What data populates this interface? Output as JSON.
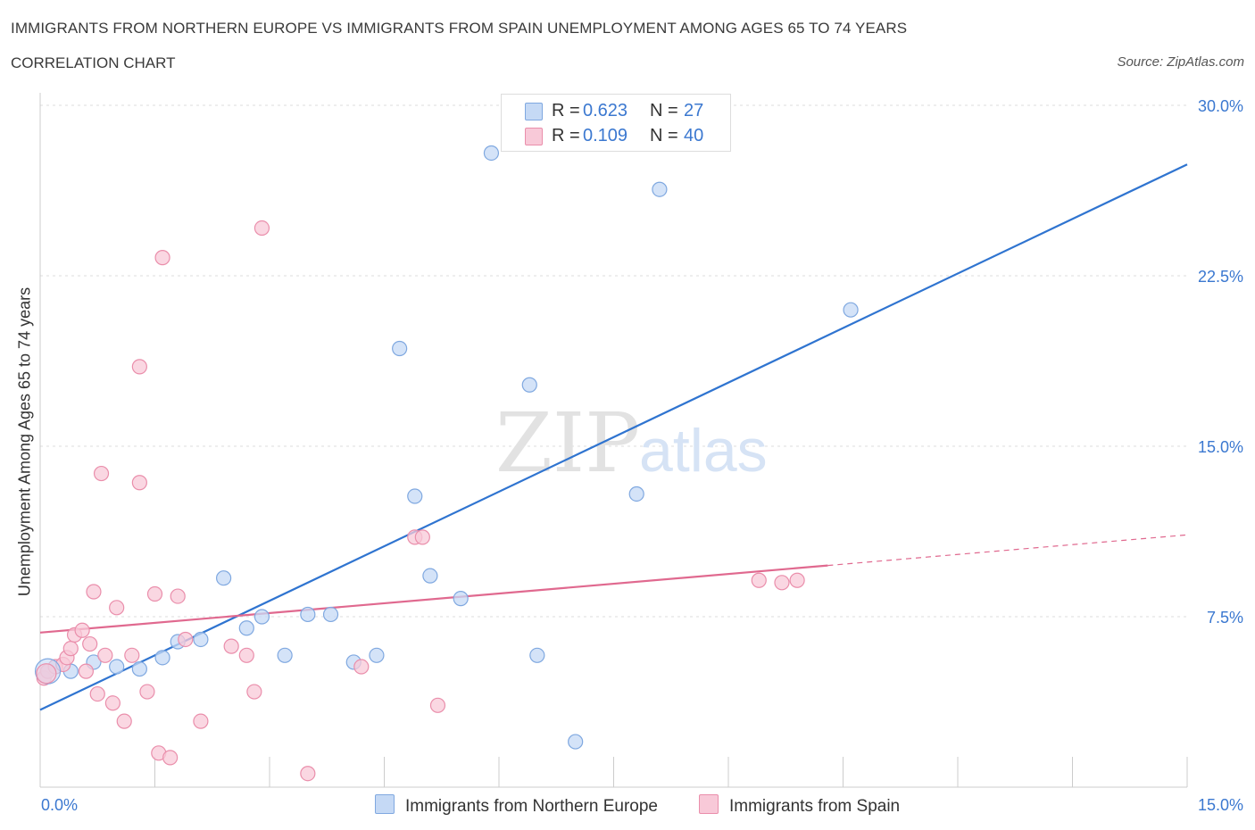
{
  "header": {
    "title": "IMMIGRANTS FROM NORTHERN EUROPE VS IMMIGRANTS FROM SPAIN UNEMPLOYMENT AMONG AGES 65 TO 74 YEARS",
    "subtitle": "CORRELATION CHART",
    "source": "Source: ZipAtlas.com"
  },
  "legend": {
    "series1": {
      "r_label": "R =",
      "r_value": "0.623",
      "n_label": "N =",
      "n_value": "27"
    },
    "series2": {
      "r_label": "R =",
      "r_value": "0.109",
      "n_label": "N =",
      "n_value": "40"
    }
  },
  "watermark": {
    "zip": "ZIP",
    "atlas": "atlas"
  },
  "colors": {
    "blue_fill": "#c5d9f5",
    "blue_stroke": "#7fa8e0",
    "blue_line": "#2f74d0",
    "pink_fill": "#f8c9d8",
    "pink_stroke": "#ea8eab",
    "pink_line": "#e0698f",
    "tick_label": "#3b78d0"
  },
  "chart_data": {
    "type": "scatter",
    "title": "IMMIGRANTS FROM NORTHERN EUROPE VS IMMIGRANTS FROM SPAIN UNEMPLOYMENT AMONG AGES 65 TO 74 YEARS",
    "xlabel": "",
    "ylabel": "Unemployment Among Ages 65 to 74 years",
    "xlim": [
      0,
      15
    ],
    "ylim": [
      0,
      30
    ],
    "x_tick_labels": [
      "0.0%",
      "15.0%"
    ],
    "y_ticks": [
      7.5,
      15,
      22.5,
      30
    ],
    "y_tick_labels": [
      "7.5%",
      "15.0%",
      "22.5%",
      "30.0%"
    ],
    "grid": true,
    "series": [
      {
        "name": "Immigrants from Northern Europe",
        "color": "blue",
        "R": 0.623,
        "N": 27,
        "trend": {
          "x": [
            0,
            15
          ],
          "y": [
            3.4,
            27.4
          ],
          "dashed_from": null
        },
        "points": [
          [
            0.1,
            5.1
          ],
          [
            0.4,
            5.1
          ],
          [
            0.7,
            5.5
          ],
          [
            1.0,
            5.3
          ],
          [
            1.3,
            5.2
          ],
          [
            1.6,
            5.7
          ],
          [
            1.8,
            6.4
          ],
          [
            2.1,
            6.5
          ],
          [
            2.4,
            9.2
          ],
          [
            2.7,
            7.0
          ],
          [
            2.9,
            7.5
          ],
          [
            3.2,
            5.8
          ],
          [
            3.5,
            7.6
          ],
          [
            3.8,
            7.6
          ],
          [
            4.1,
            5.5
          ],
          [
            4.4,
            5.8
          ],
          [
            4.7,
            19.3
          ],
          [
            4.9,
            12.8
          ],
          [
            5.1,
            9.3
          ],
          [
            5.5,
            8.3
          ],
          [
            5.9,
            27.9
          ],
          [
            6.4,
            17.7
          ],
          [
            6.5,
            5.8
          ],
          [
            7.0,
            2.0
          ],
          [
            7.8,
            12.9
          ],
          [
            8.1,
            26.3
          ],
          [
            10.6,
            21.0
          ]
        ]
      },
      {
        "name": "Immigrants from Spain",
        "color": "pink",
        "R": 0.109,
        "N": 40,
        "trend": {
          "x": [
            0,
            15
          ],
          "y": [
            6.8,
            11.1
          ],
          "dashed_from": 10.3
        },
        "points": [
          [
            0.05,
            4.8
          ],
          [
            0.1,
            5.1
          ],
          [
            0.2,
            5.3
          ],
          [
            0.3,
            5.4
          ],
          [
            0.35,
            5.7
          ],
          [
            0.4,
            6.1
          ],
          [
            0.45,
            6.7
          ],
          [
            0.55,
            6.9
          ],
          [
            0.6,
            5.1
          ],
          [
            0.65,
            6.3
          ],
          [
            0.7,
            8.6
          ],
          [
            0.75,
            4.1
          ],
          [
            0.8,
            13.8
          ],
          [
            0.85,
            5.8
          ],
          [
            0.95,
            3.7
          ],
          [
            1.0,
            7.9
          ],
          [
            1.1,
            2.9
          ],
          [
            1.2,
            5.8
          ],
          [
            1.3,
            13.4
          ],
          [
            1.3,
            18.5
          ],
          [
            1.4,
            4.2
          ],
          [
            1.5,
            8.5
          ],
          [
            1.55,
            1.5
          ],
          [
            1.6,
            23.3
          ],
          [
            1.7,
            1.3
          ],
          [
            1.8,
            8.4
          ],
          [
            1.9,
            6.5
          ],
          [
            2.1,
            2.9
          ],
          [
            2.5,
            6.2
          ],
          [
            2.7,
            5.8
          ],
          [
            2.8,
            4.2
          ],
          [
            2.9,
            24.6
          ],
          [
            3.5,
            0.6
          ],
          [
            4.2,
            5.3
          ],
          [
            4.9,
            11.0
          ],
          [
            5.0,
            11.0
          ],
          [
            5.2,
            3.6
          ],
          [
            9.4,
            9.1
          ],
          [
            9.7,
            9.0
          ],
          [
            9.9,
            9.1
          ]
        ]
      }
    ]
  },
  "bottom_legend": {
    "series1_label": "Immigrants from Northern Europe",
    "series2_label": "Immigrants from Spain"
  }
}
